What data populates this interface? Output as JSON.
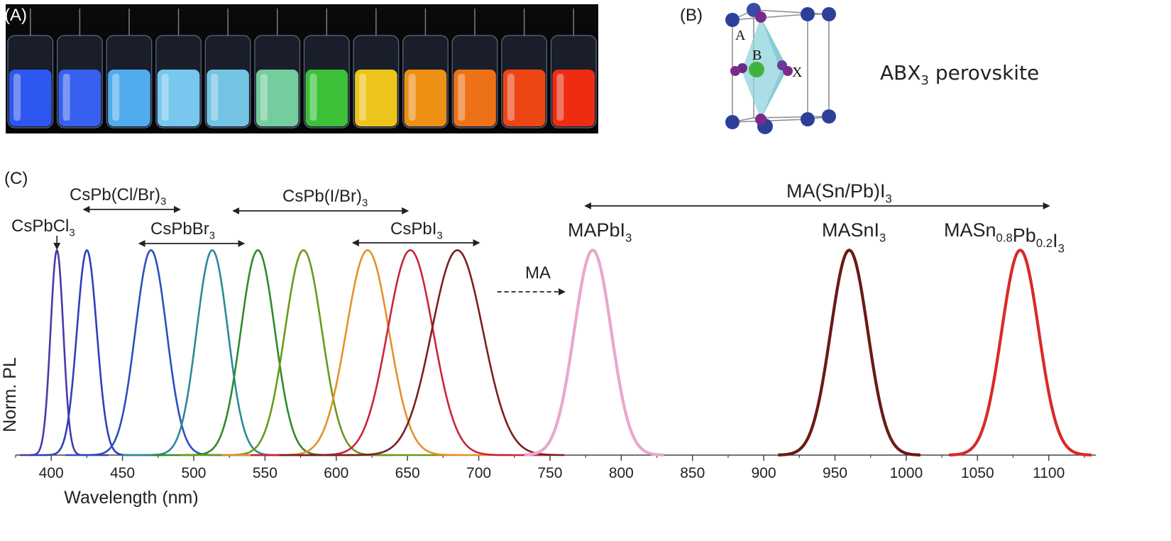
{
  "panels": {
    "a_label": "(A)",
    "b_label": "(B)",
    "c_label": "(C)"
  },
  "vials": {
    "colors": [
      "#2f5cff",
      "#3a66ff",
      "#56b8ff",
      "#7fd6ff",
      "#7ad2f2",
      "#7cdca7",
      "#3fcf3a",
      "#ffd21a",
      "#ff9a12",
      "#ff7a16",
      "#ff4a14",
      "#ff2e10"
    ]
  },
  "crystal": {
    "atom_a": "A",
    "atom_b": "B",
    "atom_x": "X",
    "title_main": "ABX",
    "title_sub": "3",
    "title_rest": " perovskite"
  },
  "chart_data": {
    "type": "line",
    "xlabel": "Wavelength (nm)",
    "ylabel": "Norm. PL",
    "xlim": [
      375,
      1135
    ],
    "ylim": [
      0,
      1
    ],
    "xticks": [
      400,
      450,
      500,
      550,
      600,
      650,
      700,
      750,
      800,
      850,
      900,
      950,
      1000,
      1050,
      1100
    ],
    "grid": false,
    "series": [
      {
        "peak": 404,
        "sigma": 4.5,
        "range": [
          378,
          440
        ],
        "color": "#4a3aa8"
      },
      {
        "peak": 425,
        "sigma": 7,
        "range": [
          385,
          480
        ],
        "color": "#2f3fb8"
      },
      {
        "peak": 470,
        "sigma": 11,
        "range": [
          410,
          560
        ],
        "color": "#2a4fbf"
      },
      {
        "peak": 513,
        "sigma": 11,
        "range": [
          450,
          600
        ],
        "color": "#2a8a9a"
      },
      {
        "peak": 545,
        "sigma": 12,
        "range": [
          470,
          640
        ],
        "color": "#2e8a2e"
      },
      {
        "peak": 577,
        "sigma": 13,
        "range": [
          490,
          680
        ],
        "color": "#6a9a1a"
      },
      {
        "peak": 622,
        "sigma": 15,
        "range": [
          520,
          720
        ],
        "color": "#e6902a"
      },
      {
        "peak": 652,
        "sigma": 16,
        "range": [
          540,
          750
        ],
        "color": "#c8253a"
      },
      {
        "peak": 685,
        "sigma": 18,
        "range": [
          560,
          760
        ],
        "color": "#7a1f1f"
      },
      {
        "peak": 780,
        "sigma": 13,
        "range": [
          732,
          830
        ],
        "color": "#e8a8cc"
      },
      {
        "peak": 960,
        "sigma": 13,
        "range": [
          910,
          1010
        ],
        "color": "#6a1a14"
      },
      {
        "peak": 1080,
        "sigma": 13,
        "range": [
          1030,
          1130
        ],
        "color": "#d82a2a"
      }
    ],
    "annotations": [
      {
        "main": "CsPbCl",
        "sub": "3",
        "rest": ""
      },
      {
        "main": "CsPb(Cl/Br)",
        "sub": "3",
        "rest": ""
      },
      {
        "main": "CsPbBr",
        "sub": "3",
        "rest": ""
      },
      {
        "main": "CsPb(I/Br)",
        "sub": "3",
        "rest": ""
      },
      {
        "main": "CsPbI",
        "sub": "3",
        "rest": ""
      },
      {
        "main": "MA",
        "sub": "",
        "rest": ""
      },
      {
        "main": "MAPbI",
        "sub": "3",
        "rest": ""
      },
      {
        "main": "MA(Sn/Pb)I",
        "sub": "3",
        "rest": ""
      },
      {
        "main": "MASnI",
        "sub": "3",
        "rest": ""
      },
      {
        "main": "MASn",
        "sub": "0.8",
        "rest": "Pb",
        "sub2": "0.2",
        "rest2": "I",
        "sub3": "3"
      }
    ]
  }
}
